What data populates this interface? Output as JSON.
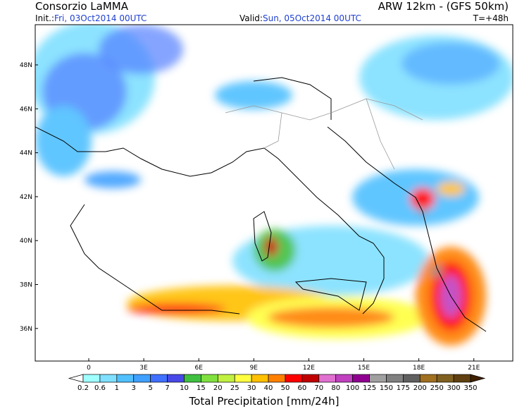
{
  "header": {
    "left_title": "Consorzio LaMMA",
    "right_title": "ARW 12km - (GFS 50km)",
    "init_label": "Init.:",
    "init_value": "Fri, 03Oct2014 00UTC",
    "valid_label": "Valid:",
    "valid_value": "Sun, 05Oct2014 00UTC",
    "forecast_step": "T=+48h"
  },
  "map": {
    "latitude_labels": [
      "48N",
      "46N",
      "44N",
      "42N",
      "40N",
      "38N",
      "36N"
    ],
    "longitude_labels": [
      "0",
      "3E",
      "6E",
      "9E",
      "12E",
      "15E",
      "18E",
      "21E"
    ]
  },
  "colorbar": {
    "title": "Total Precipitation [mm/24h]",
    "levels": [
      "0.2",
      "0.6",
      "1",
      "3",
      "5",
      "7",
      "10",
      "15",
      "20",
      "25",
      "30",
      "40",
      "50",
      "60",
      "70",
      "80",
      "100",
      "125",
      "150",
      "175",
      "200",
      "250",
      "300",
      "350"
    ],
    "colors": [
      "#ffffff",
      "#a0ffff",
      "#80e0ff",
      "#50c0ff",
      "#40a0ff",
      "#4070ff",
      "#4848e8",
      "#40c040",
      "#80e040",
      "#c0f040",
      "#ffff40",
      "#ffc000",
      "#ff8000",
      "#ff0000",
      "#c00000",
      "#e070d0",
      "#c040c0",
      "#900090",
      "#a0a0a0",
      "#808080",
      "#606060",
      "#a07020",
      "#806020",
      "#604010",
      "#402000"
    ]
  }
}
